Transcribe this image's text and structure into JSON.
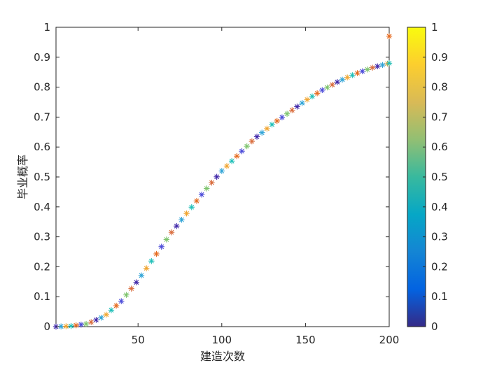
{
  "chart_data": {
    "type": "scatter",
    "title": "",
    "xlabel": "建造次数",
    "ylabel": "毕业概率",
    "xlim": [
      1,
      200
    ],
    "ylim": [
      0,
      1
    ],
    "xticks": [
      50,
      100,
      150,
      200
    ],
    "yticks": [
      0,
      0.1,
      0.2,
      0.3,
      0.4,
      0.5,
      0.6,
      0.7,
      0.8,
      0.9,
      1
    ],
    "marker": "asterisk",
    "grid": false,
    "legend": "none",
    "colorbar": {
      "colormap": "parula",
      "range": [
        0,
        1
      ],
      "ticks": [
        0,
        0.1,
        0.2,
        0.3,
        0.4,
        0.5,
        0.6,
        0.7,
        0.8,
        0.9,
        1
      ],
      "stops": [
        "#352a87",
        "#0363e1",
        "#1485d4",
        "#06a7c6",
        "#38b99e",
        "#92bf73",
        "#d9ba56",
        "#fcce2e",
        "#f9fb0e"
      ]
    },
    "curve": {
      "description_points_x": [
        1,
        10,
        20,
        30,
        40,
        50,
        60,
        70,
        80,
        90,
        100,
        110,
        120,
        130,
        140,
        150,
        160,
        170,
        180,
        190,
        200
      ],
      "description_points_y": [
        0,
        0.002,
        0.01,
        0.035,
        0.085,
        0.155,
        0.235,
        0.315,
        0.385,
        0.455,
        0.52,
        0.575,
        0.63,
        0.675,
        0.715,
        0.755,
        0.79,
        0.82,
        0.845,
        0.865,
        0.88
      ],
      "marker_spacing": 3
    },
    "outlier": {
      "x": 200,
      "y": 0.97,
      "color": "#e56a1f"
    }
  }
}
